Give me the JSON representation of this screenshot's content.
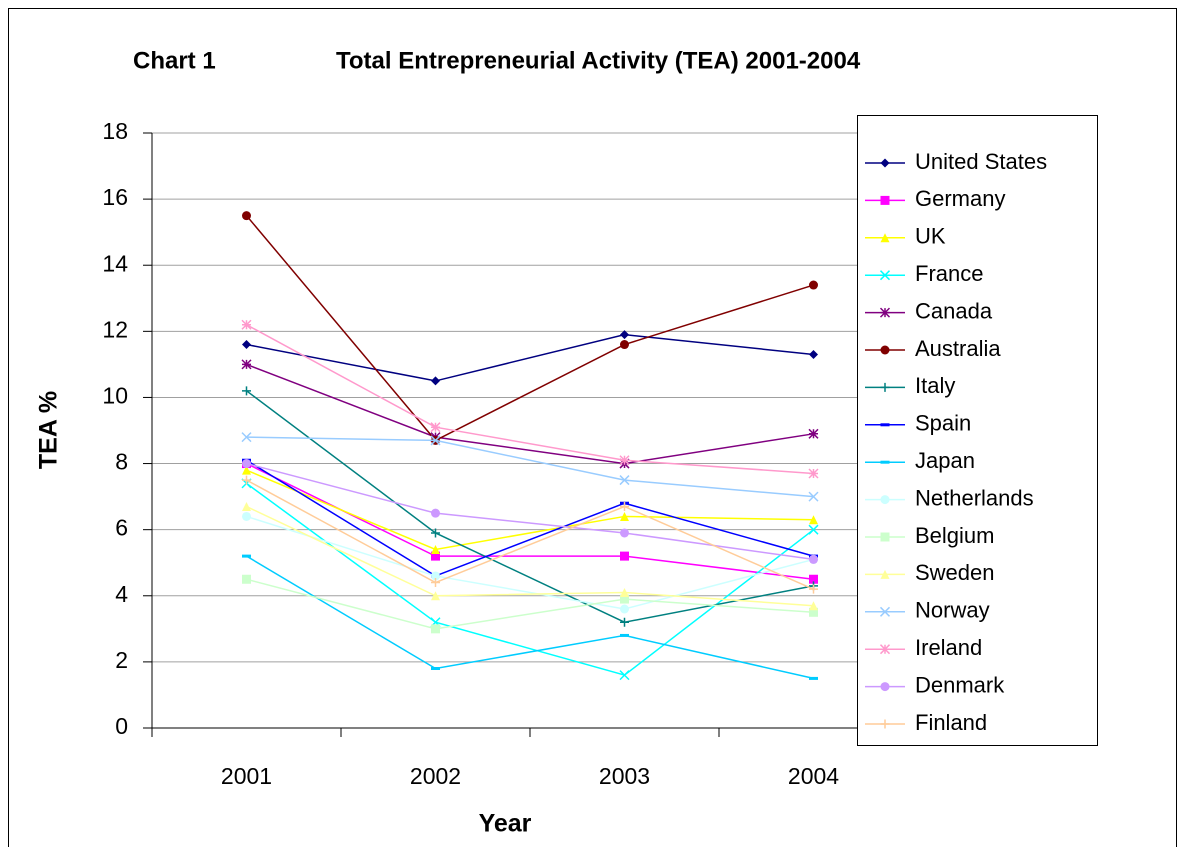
{
  "chart_data": {
    "type": "line",
    "chart_label": "Chart 1",
    "title": "Total Entrepreneurial Activity (TEA) 2001-2004",
    "x_label": "Year",
    "y_label": "TEA %",
    "categories": [
      "2001",
      "2002",
      "2003",
      "2004"
    ],
    "ylim": [
      0,
      18
    ],
    "yticks": [
      0,
      2,
      4,
      6,
      8,
      10,
      12,
      14,
      16,
      18
    ],
    "grid": true,
    "legend": "right",
    "series": [
      {
        "name": "United States",
        "color": "#000080",
        "marker": "diamond",
        "values": [
          11.6,
          10.5,
          11.9,
          11.3
        ]
      },
      {
        "name": "Germany",
        "color": "#FF00FF",
        "marker": "square",
        "values": [
          8.0,
          5.2,
          5.2,
          4.5
        ]
      },
      {
        "name": "UK",
        "color": "#FFFF00",
        "marker": "triangle",
        "values": [
          7.8,
          5.4,
          6.4,
          6.3
        ]
      },
      {
        "name": "France",
        "color": "#00FFFF",
        "marker": "x",
        "values": [
          7.4,
          3.2,
          1.6,
          6.0
        ]
      },
      {
        "name": "Canada",
        "color": "#800080",
        "marker": "star",
        "values": [
          11.0,
          8.8,
          8.0,
          8.9
        ]
      },
      {
        "name": "Australia",
        "color": "#800000",
        "marker": "circle",
        "values": [
          15.5,
          8.7,
          11.6,
          13.4
        ]
      },
      {
        "name": "Italy",
        "color": "#008080",
        "marker": "plus",
        "values": [
          10.2,
          5.9,
          3.2,
          4.3
        ]
      },
      {
        "name": "Spain",
        "color": "#0000FF",
        "marker": "dash",
        "values": [
          8.1,
          4.6,
          6.8,
          5.2
        ]
      },
      {
        "name": "Japan",
        "color": "#00CCFF",
        "marker": "dash",
        "values": [
          5.2,
          1.8,
          2.8,
          1.5
        ]
      },
      {
        "name": "Netherlands",
        "color": "#CCFFFF",
        "marker": "circle",
        "values": [
          6.4,
          4.6,
          3.6,
          5.1
        ]
      },
      {
        "name": "Belgium",
        "color": "#CCFFCC",
        "marker": "square",
        "values": [
          4.5,
          3.0,
          3.9,
          3.5
        ]
      },
      {
        "name": "Sweden",
        "color": "#FFFF99",
        "marker": "triangle",
        "values": [
          6.7,
          4.0,
          4.1,
          3.7
        ]
      },
      {
        "name": "Norway",
        "color": "#99CCFF",
        "marker": "x",
        "values": [
          8.8,
          8.7,
          7.5,
          7.0
        ]
      },
      {
        "name": "Ireland",
        "color": "#FF99CC",
        "marker": "star",
        "values": [
          12.2,
          9.1,
          8.1,
          7.7
        ]
      },
      {
        "name": "Denmark",
        "color": "#CC99FF",
        "marker": "circle",
        "values": [
          8.0,
          6.5,
          5.9,
          5.1
        ]
      },
      {
        "name": "Finland",
        "color": "#FFCC99",
        "marker": "plus",
        "values": [
          7.5,
          4.4,
          6.7,
          4.2
        ]
      }
    ]
  }
}
